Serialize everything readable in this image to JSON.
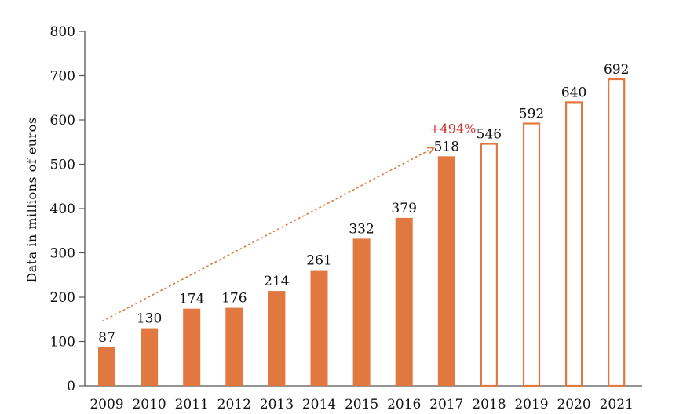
{
  "chart_data": {
    "type": "bar",
    "ylabel": "Data in millions of euros",
    "xlabel": "",
    "title": "",
    "ylim": [
      0,
      800
    ],
    "yticks": [
      0,
      100,
      200,
      300,
      400,
      500,
      600,
      700,
      800
    ],
    "grid": false,
    "categories": [
      "2009",
      "2010",
      "2011",
      "2012",
      "2013",
      "2014",
      "2015",
      "2016",
      "2017",
      "2018",
      "2019",
      "2020",
      "2021"
    ],
    "values": [
      87,
      130,
      174,
      176,
      214,
      261,
      332,
      379,
      518,
      546,
      592,
      640,
      692
    ],
    "bar_style": [
      "filled",
      "filled",
      "filled",
      "filled",
      "filled",
      "filled",
      "filled",
      "filled",
      "filled",
      "outline",
      "outline",
      "outline",
      "outline"
    ],
    "annotation": {
      "text": "+494%",
      "from_category": "2009",
      "to_category": "2017"
    },
    "colors": {
      "bar": "#e07840",
      "annotation_text": "#cc3333",
      "axis": "#555555"
    }
  }
}
